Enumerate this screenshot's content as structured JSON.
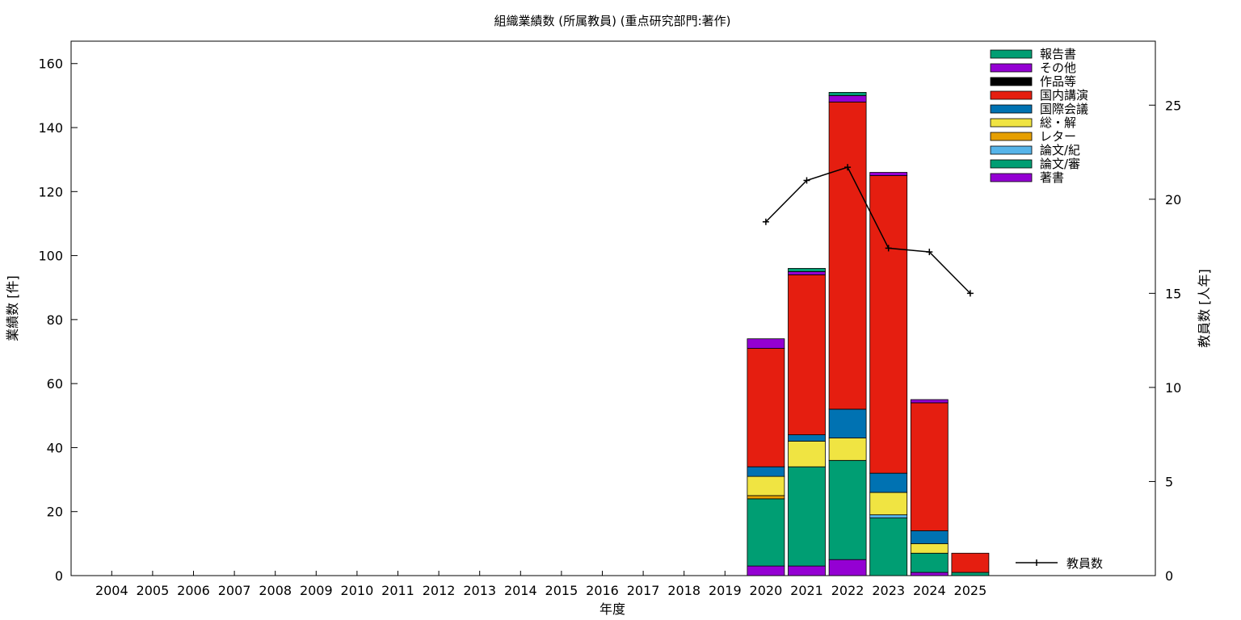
{
  "chart_data": {
    "type": "bar",
    "stacked": true,
    "title": "組織業績数 (所属教員) (重点研究部門:著作)",
    "xlabel": "年度",
    "ylabel": "業績数 [件]",
    "y2label": "教員数 [人年]",
    "ylim": [
      0,
      167
    ],
    "y2lim": [
      0,
      28.4
    ],
    "yticks": [
      0,
      20,
      40,
      60,
      80,
      100,
      120,
      140,
      160
    ],
    "y2ticks": [
      0,
      5,
      10,
      15,
      20,
      25
    ],
    "categories": [
      "2004",
      "2005",
      "2006",
      "2007",
      "2008",
      "2009",
      "2010",
      "2011",
      "2012",
      "2013",
      "2014",
      "2015",
      "2016",
      "2017",
      "2018",
      "2019",
      "2020",
      "2021",
      "2022",
      "2023",
      "2024",
      "2025"
    ],
    "legend_position": "top-right",
    "series": [
      {
        "name": "著書",
        "color": "#9400d3",
        "values": [
          0,
          0,
          0,
          0,
          0,
          0,
          0,
          0,
          0,
          0,
          0,
          0,
          0,
          0,
          0,
          0,
          3,
          3,
          5,
          0,
          1,
          0
        ]
      },
      {
        "name": "論文/審",
        "color": "#009e73",
        "values": [
          0,
          0,
          0,
          0,
          0,
          0,
          0,
          0,
          0,
          0,
          0,
          0,
          0,
          0,
          0,
          0,
          21,
          31,
          31,
          18,
          6,
          1
        ]
      },
      {
        "name": "論文/紀",
        "color": "#56b4e9",
        "values": [
          0,
          0,
          0,
          0,
          0,
          0,
          0,
          0,
          0,
          0,
          0,
          0,
          0,
          0,
          0,
          0,
          0,
          0,
          0,
          1,
          0,
          0
        ]
      },
      {
        "name": "レター",
        "color": "#e69f00",
        "values": [
          0,
          0,
          0,
          0,
          0,
          0,
          0,
          0,
          0,
          0,
          0,
          0,
          0,
          0,
          0,
          0,
          1,
          0,
          0,
          0,
          0,
          0
        ]
      },
      {
        "name": "総・解",
        "color": "#f0e442",
        "values": [
          0,
          0,
          0,
          0,
          0,
          0,
          0,
          0,
          0,
          0,
          0,
          0,
          0,
          0,
          0,
          0,
          6,
          8,
          7,
          7,
          3,
          0
        ]
      },
      {
        "name": "国際会議",
        "color": "#0072b2",
        "values": [
          0,
          0,
          0,
          0,
          0,
          0,
          0,
          0,
          0,
          0,
          0,
          0,
          0,
          0,
          0,
          0,
          3,
          2,
          9,
          6,
          4,
          0
        ]
      },
      {
        "name": "国内講演",
        "color": "#e51e10",
        "values": [
          0,
          0,
          0,
          0,
          0,
          0,
          0,
          0,
          0,
          0,
          0,
          0,
          0,
          0,
          0,
          0,
          37,
          50,
          96,
          93,
          40,
          6
        ]
      },
      {
        "name": "作品等",
        "color": "#000000",
        "values": [
          0,
          0,
          0,
          0,
          0,
          0,
          0,
          0,
          0,
          0,
          0,
          0,
          0,
          0,
          0,
          0,
          0,
          0,
          0,
          0,
          0,
          0
        ]
      },
      {
        "name": "その他",
        "color": "#9400d3",
        "values": [
          0,
          0,
          0,
          0,
          0,
          0,
          0,
          0,
          0,
          0,
          0,
          0,
          0,
          0,
          0,
          0,
          3,
          1,
          2,
          1,
          1,
          0
        ]
      },
      {
        "name": "報告書",
        "color": "#009e73",
        "values": [
          0,
          0,
          0,
          0,
          0,
          0,
          0,
          0,
          0,
          0,
          0,
          0,
          0,
          0,
          0,
          0,
          0,
          1,
          1,
          0,
          0,
          0
        ]
      }
    ],
    "line_series": {
      "name": "教員数",
      "axis": "right",
      "color": "#000000",
      "points": [
        {
          "x": "2020",
          "y": 18.8
        },
        {
          "x": "2021",
          "y": 21.0
        },
        {
          "x": "2022",
          "y": 21.7
        },
        {
          "x": "2023",
          "y": 17.4
        },
        {
          "x": "2024",
          "y": 17.2
        },
        {
          "x": "2025",
          "y": 15.0
        }
      ]
    }
  }
}
